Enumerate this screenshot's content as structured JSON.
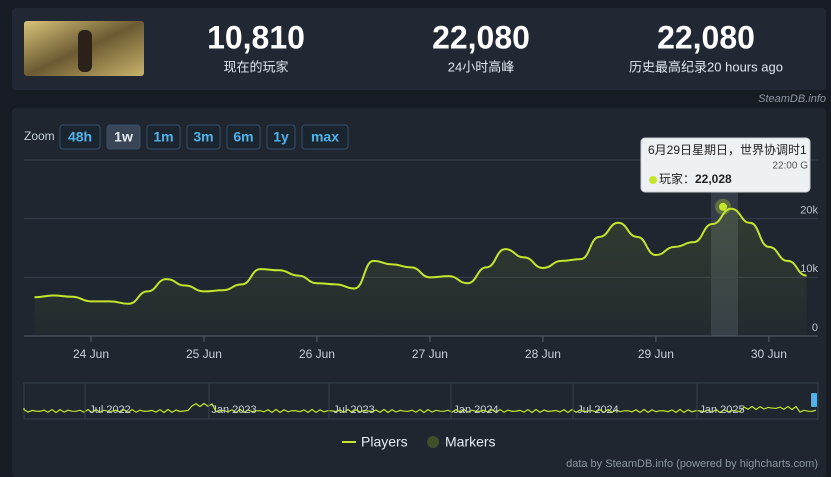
{
  "header": {
    "stats": [
      {
        "value": "10,810",
        "label": "现在的玩家"
      },
      {
        "value": "22,080",
        "label": "24小时高峰"
      },
      {
        "value": "22,080",
        "label": "历史最高纪录20 hours ago"
      }
    ],
    "source": "SteamDB.info"
  },
  "zoom": {
    "label": "Zoom",
    "buttons": [
      "48h",
      "1w",
      "1m",
      "3m",
      "6m",
      "1y",
      "max"
    ],
    "active": 1
  },
  "chart_data": {
    "type": "line",
    "categories": [
      null,
      null,
      null,
      "24 Jun",
      null,
      null,
      null,
      null,
      null,
      "25 Jun",
      null,
      null,
      null,
      null,
      null,
      "26 Jun",
      null,
      null,
      null,
      null,
      null,
      "27 Jun",
      null,
      null,
      null,
      null,
      null,
      "28 Jun",
      null,
      null,
      null,
      null,
      null,
      "29 Jun",
      null,
      null,
      null,
      null,
      null,
      "30 Jun",
      null,
      null
    ],
    "series": [
      {
        "name": "Players",
        "color": "#c5e52d",
        "values": [
          6600,
          6900,
          6700,
          5900,
          5900,
          5500,
          7600,
          9700,
          8600,
          7600,
          7800,
          8800,
          11400,
          11200,
          10300,
          9000,
          8800,
          8100,
          12800,
          12200,
          11700,
          10000,
          10200,
          9000,
          11700,
          14800,
          13400,
          11600,
          12800,
          13100,
          16900,
          19300,
          16900,
          13800,
          15200,
          16000,
          19100,
          21700,
          19300,
          15200,
          12800,
          10300
        ]
      }
    ],
    "ylim": [
      0,
      30000
    ],
    "yticks": [
      0,
      {
        "value": 10000,
        "label": "10k"
      },
      {
        "value": 20000,
        "label": "20k"
      }
    ],
    "grid": true,
    "markers_legend": {
      "name": "Markers",
      "color": "#3f4f2a"
    },
    "tooltip": {
      "title": "6月29日星期日，世界协调时1",
      "time": "22:00 G",
      "label": "玩家：",
      "value": 22028,
      "value_label": "22,028"
    },
    "navigator_labels": [
      "Jul 2022",
      "Jan 2023",
      "Jul 2023",
      "Jan 2024",
      "Jul 2024",
      "Jan 2025"
    ],
    "credit": "data by SteamDB.info (powered by highcharts.com)"
  }
}
